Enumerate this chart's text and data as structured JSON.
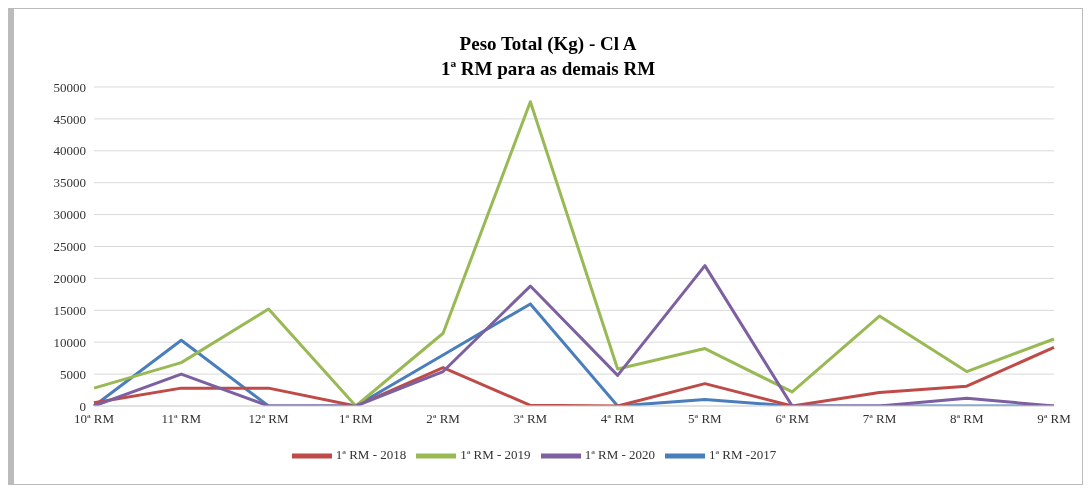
{
  "chart_data": {
    "type": "line",
    "title": "Peso Total (Kg) - Cl A",
    "subtitle": "1ª RM para as demais RM",
    "categories": [
      "10ª RM",
      "11ª RM",
      "12ª RM",
      "1ª RM",
      "2ª RM",
      "3ª RM",
      "4ª RM",
      "5ª RM",
      "6ª RM",
      "7ª RM",
      "8ª RM",
      "9ª RM"
    ],
    "series": [
      {
        "name": "1ª RM -2017",
        "color": "#4a7ebb",
        "values": [
          0,
          10300,
          0,
          0,
          8000,
          16000,
          0,
          1000,
          0,
          0,
          0,
          0
        ]
      },
      {
        "name": "1ª RM - 2018",
        "color": "#be4b48",
        "values": [
          500,
          2800,
          2800,
          0,
          6000,
          100,
          0,
          3500,
          0,
          2100,
          3100,
          9200
        ]
      },
      {
        "name": "1ª RM - 2019",
        "color": "#98b954",
        "values": [
          2800,
          6800,
          15200,
          0,
          11400,
          47700,
          5800,
          9000,
          2200,
          14100,
          5400,
          10500
        ]
      },
      {
        "name": "1ª RM - 2020",
        "color": "#7d60a0",
        "values": [
          0,
          5000,
          0,
          0,
          5400,
          18800,
          4800,
          22000,
          0,
          0,
          1200,
          0
        ]
      }
    ],
    "ylim": [
      0,
      50000
    ],
    "yticks": [
      0,
      5000,
      10000,
      15000,
      20000,
      25000,
      30000,
      35000,
      40000,
      45000,
      50000
    ],
    "grid": "y",
    "legend": "bottom",
    "marker": "none",
    "line_style": "solid"
  }
}
